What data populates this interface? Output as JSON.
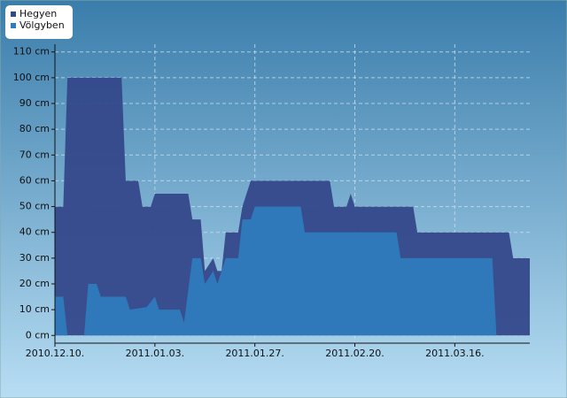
{
  "chart_data": {
    "type": "area",
    "series": [
      {
        "name": "Hegyen",
        "color": "#34488a",
        "x": [
          0,
          2,
          3,
          16,
          17,
          20,
          21,
          23,
          24,
          32,
          33,
          35,
          36,
          38,
          39,
          40,
          41,
          44,
          45,
          47,
          66,
          67,
          70,
          71,
          72,
          86,
          87,
          109,
          110,
          114
        ],
        "values": [
          50,
          50,
          100,
          100,
          60,
          60,
          50,
          50,
          55,
          55,
          45,
          45,
          25,
          30,
          25,
          25,
          40,
          40,
          50,
          60,
          60,
          50,
          50,
          55,
          50,
          50,
          40,
          40,
          30,
          30
        ]
      },
      {
        "name": "Völgyben",
        "color": "#2e7bbd",
        "x": [
          0,
          2,
          3,
          7,
          8,
          10,
          11,
          17,
          18,
          22,
          24,
          25,
          30,
          31,
          33,
          35,
          36,
          38,
          39,
          41,
          44,
          45,
          47,
          48,
          59,
          60,
          82,
          83,
          105,
          106,
          114
        ],
        "values": [
          15,
          15,
          0,
          0,
          20,
          20,
          15,
          15,
          10,
          11,
          15,
          10,
          10,
          5,
          30,
          30,
          20,
          25,
          20,
          30,
          30,
          45,
          45,
          50,
          50,
          40,
          40,
          30,
          30,
          0,
          0
        ]
      }
    ],
    "xlim": [
      0,
      114
    ],
    "xticks": [
      {
        "value": 0,
        "label": "2010.12.10."
      },
      {
        "value": 24,
        "label": "2011.01.03."
      },
      {
        "value": 48,
        "label": "2011.01.27."
      },
      {
        "value": 72,
        "label": "2011.02.20."
      },
      {
        "value": 96,
        "label": "2011.03.16."
      }
    ],
    "ylim": [
      -3,
      113
    ],
    "yticks": [
      {
        "value": 0,
        "label": "0 cm"
      },
      {
        "value": 10,
        "label": "10 cm"
      },
      {
        "value": 20,
        "label": "20 cm"
      },
      {
        "value": 30,
        "label": "30 cm"
      },
      {
        "value": 40,
        "label": "40 cm"
      },
      {
        "value": 50,
        "label": "50 cm"
      },
      {
        "value": 60,
        "label": "60 cm"
      },
      {
        "value": 70,
        "label": "70 cm"
      },
      {
        "value": 80,
        "label": "80 cm"
      },
      {
        "value": 90,
        "label": "90 cm"
      },
      {
        "value": 100,
        "label": "100 cm"
      },
      {
        "value": 110,
        "label": "110 cm"
      }
    ],
    "grid": true,
    "legend": "top-left"
  }
}
